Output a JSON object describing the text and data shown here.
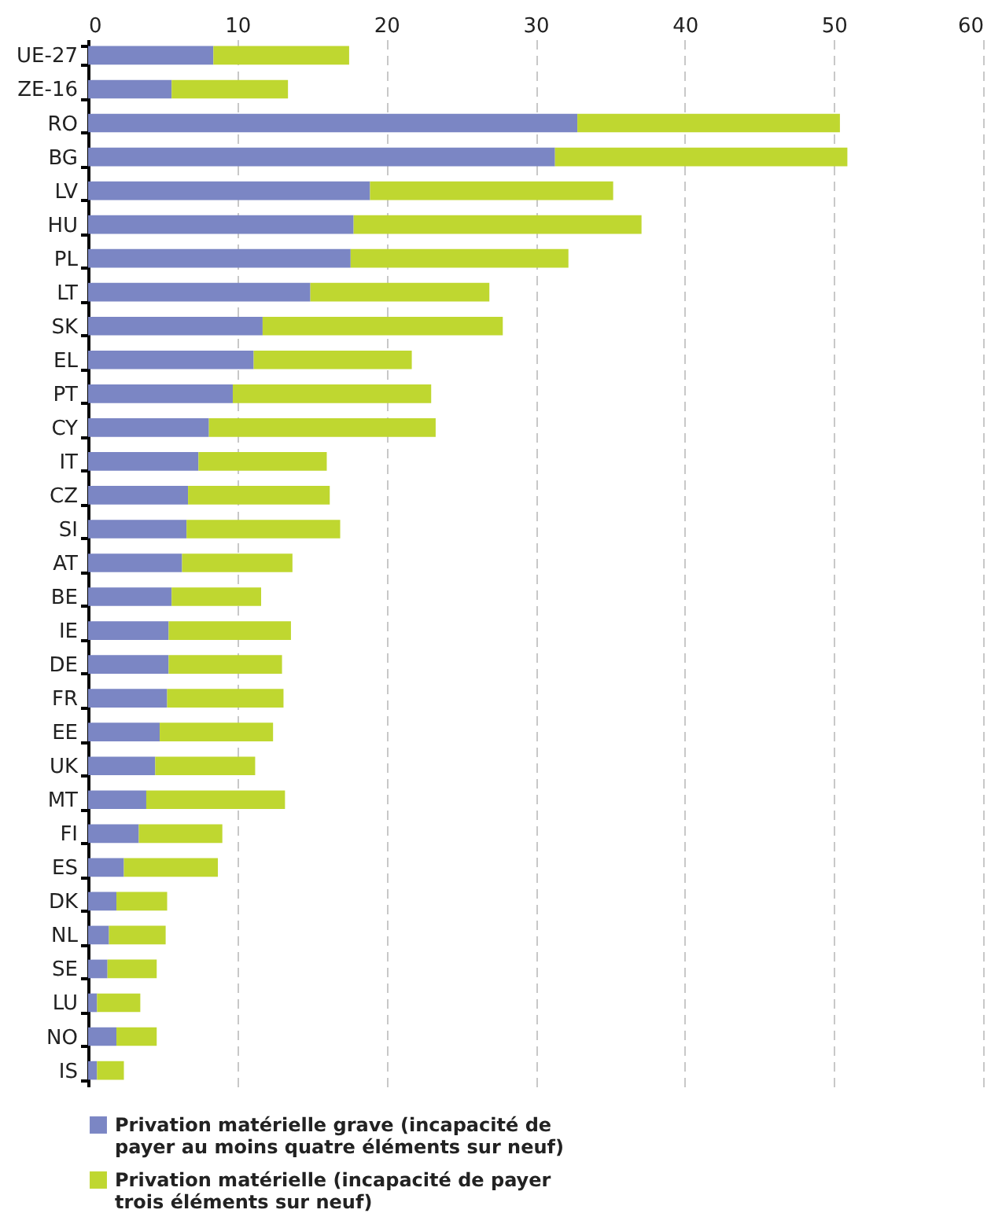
{
  "chart_data": {
    "type": "bar",
    "orientation": "horizontal",
    "stacked": true,
    "categories": [
      "UE-27",
      "ZE-16",
      "RO",
      "BG",
      "LV",
      "HU",
      "PL",
      "LT",
      "SK",
      "EL",
      "PT",
      "CY",
      "IT",
      "CZ",
      "SI",
      "AT",
      "BE",
      "IE",
      "DE",
      "FR",
      "EE",
      "UK",
      "MT",
      "FI",
      "ES",
      "DK",
      "NL",
      "SE",
      "LU",
      "NO",
      "IS"
    ],
    "series": [
      {
        "name": "Privation matérielle grave (incapacité de payer au moins quatre éléments sur neuf)",
        "color": "#7b86c4",
        "values": [
          8.4,
          5.6,
          32.8,
          31.3,
          18.9,
          17.8,
          17.6,
          14.9,
          11.7,
          11.1,
          9.7,
          8.1,
          7.4,
          6.7,
          6.6,
          6.3,
          5.6,
          5.4,
          5.4,
          5.3,
          4.8,
          4.5,
          3.9,
          3.4,
          2.4,
          1.9,
          1.4,
          1.3,
          0.6,
          1.9,
          0.6
        ]
      },
      {
        "name": "Privation matérielle (incapacité de payer trois éléments sur neuf)",
        "color": "#bfd730",
        "values": [
          9.1,
          7.8,
          17.6,
          19.6,
          16.3,
          19.3,
          14.6,
          12.0,
          16.1,
          10.6,
          13.3,
          15.2,
          8.6,
          9.5,
          10.3,
          7.4,
          6.0,
          8.2,
          7.6,
          7.8,
          7.6,
          6.7,
          9.3,
          5.6,
          6.3,
          3.4,
          3.8,
          3.3,
          2.9,
          2.7,
          1.8
        ]
      }
    ],
    "xlim": [
      0,
      60
    ],
    "xticks": [
      0,
      10,
      20,
      30,
      40,
      50,
      60
    ],
    "grid": "x",
    "legend": "bottom"
  }
}
